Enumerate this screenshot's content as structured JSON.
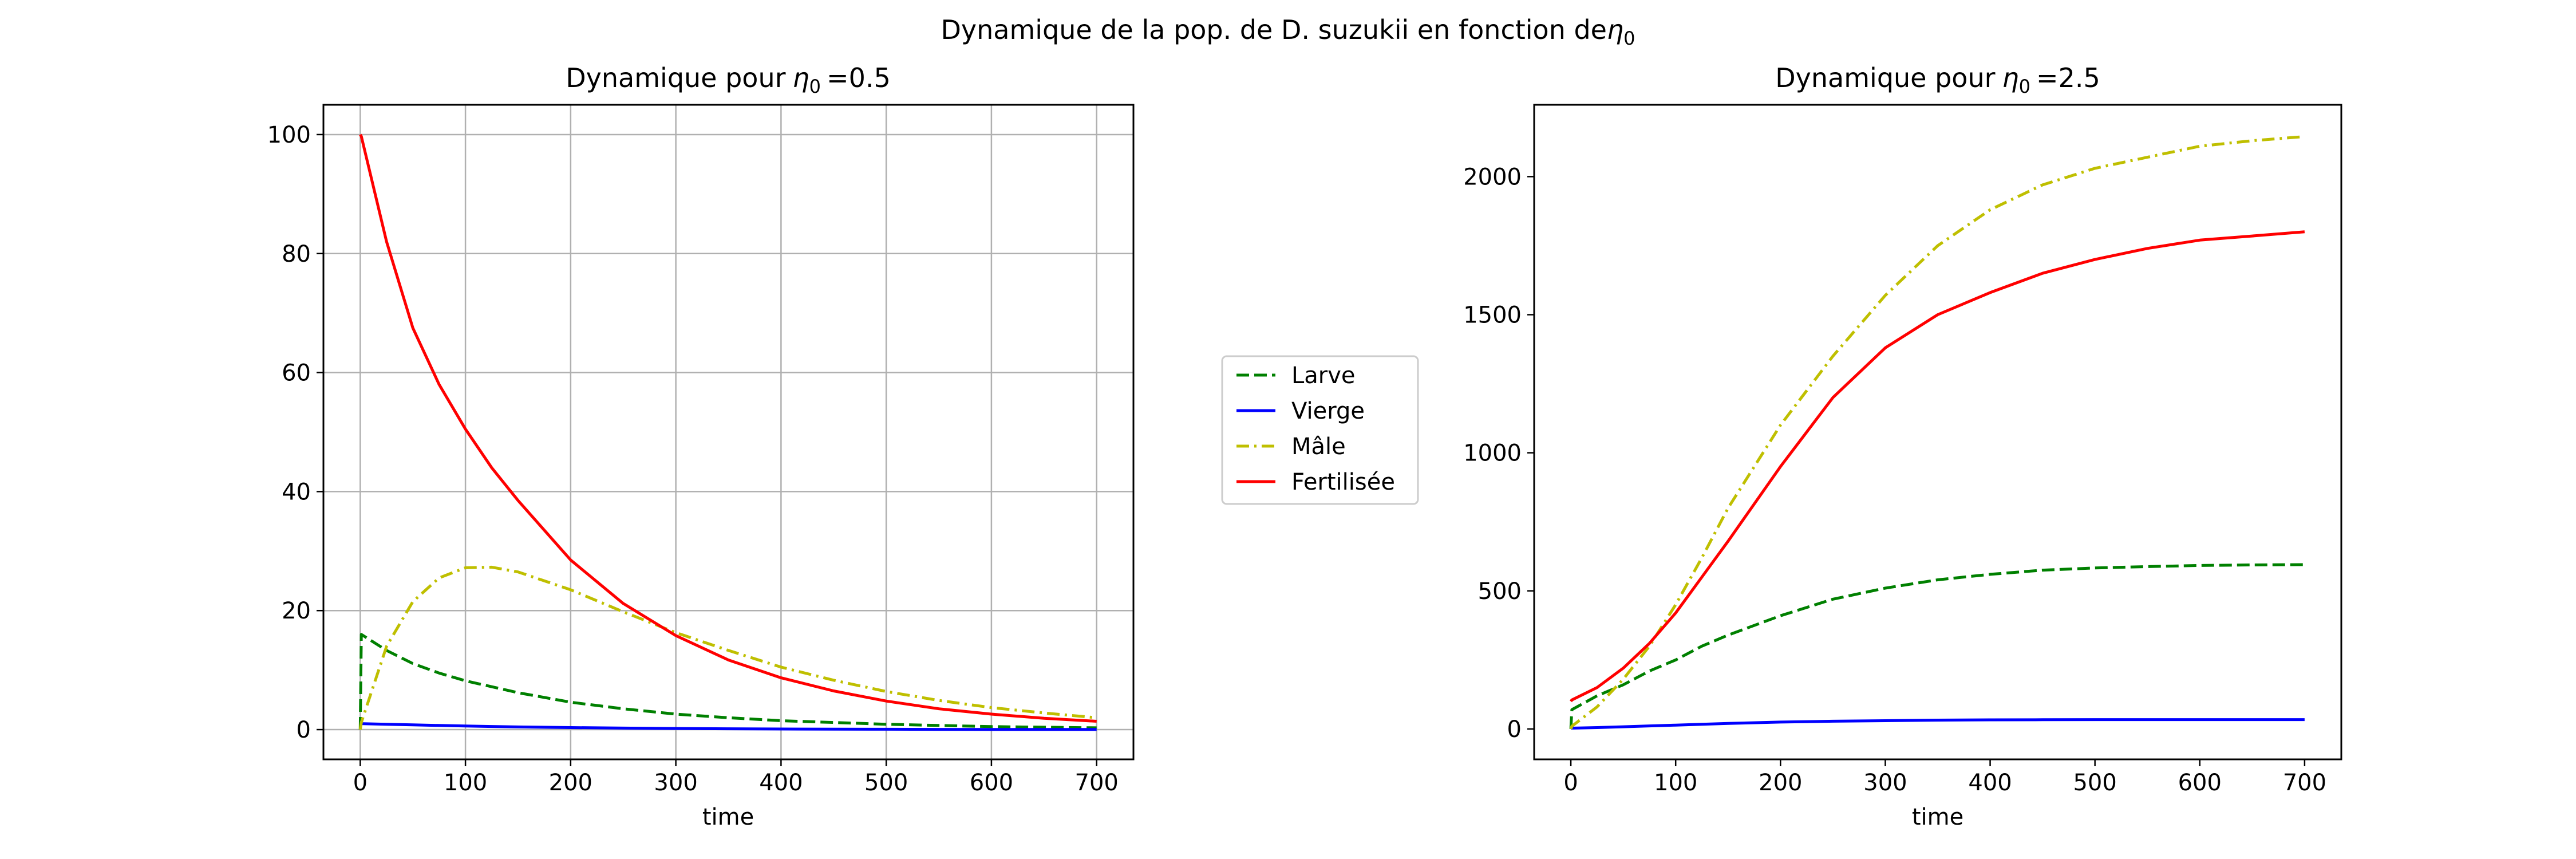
{
  "figure": {
    "suptitle_text": "Dynamique de la pop. de D. suzukii en fonction de",
    "suptitle_symbol": "η",
    "suptitle_sub": "0"
  },
  "legend": {
    "entries": [
      "Larve",
      "Vierge",
      "Mâle",
      "Fertilisée"
    ],
    "colors": [
      "#008000",
      "#0000ff",
      "#bfbf00",
      "#ff0000"
    ],
    "styles": [
      "dashed",
      "solid",
      "dashdot",
      "solid"
    ]
  },
  "chart_data": [
    {
      "type": "line",
      "title_text": "Dynamique pour",
      "title_symbol": "η",
      "title_sub": "0",
      "title_value": "=0.5",
      "xlabel": "time",
      "ylabel": "",
      "xlim": [
        -35,
        735
      ],
      "ylim": [
        -5,
        105
      ],
      "xticks": [
        0,
        100,
        200,
        300,
        400,
        500,
        600,
        700
      ],
      "yticks": [
        0,
        20,
        40,
        60,
        80,
        100
      ],
      "grid": true,
      "x": [
        0,
        1,
        25,
        50,
        75,
        100,
        125,
        150,
        200,
        250,
        300,
        350,
        400,
        450,
        500,
        550,
        600,
        650,
        700
      ],
      "series": [
        {
          "name": "Larve",
          "color": "#008000",
          "style": "dashed",
          "values": [
            0,
            16,
            13.3,
            11.1,
            9.5,
            8.2,
            7.2,
            6.2,
            4.6,
            3.5,
            2.6,
            2.0,
            1.5,
            1.2,
            0.9,
            0.7,
            0.5,
            0.4,
            0.3
          ]
        },
        {
          "name": "Vierge",
          "color": "#0000ff",
          "style": "solid",
          "values": [
            1.0,
            1.0,
            0.9,
            0.8,
            0.7,
            0.6,
            0.52,
            0.45,
            0.34,
            0.25,
            0.19,
            0.14,
            0.1,
            0.08,
            0.06,
            0.04,
            0.03,
            0.02,
            0.02
          ]
        },
        {
          "name": "Mâle",
          "color": "#bfbf00",
          "style": "dashdot",
          "values": [
            0,
            1.2,
            14,
            21.5,
            25.5,
            27.2,
            27.3,
            26.5,
            23.5,
            19.8,
            16.3,
            13.3,
            10.5,
            8.3,
            6.4,
            4.9,
            3.7,
            2.8,
            2.0
          ]
        },
        {
          "name": "Fertilisée",
          "color": "#ff0000",
          "style": "solid",
          "values": [
            100,
            99.7,
            82,
            67.5,
            58,
            50.5,
            44,
            38.5,
            28.5,
            21.2,
            15.8,
            11.7,
            8.7,
            6.5,
            4.8,
            3.5,
            2.6,
            1.9,
            1.4
          ]
        }
      ]
    },
    {
      "type": "line",
      "title_text": "Dynamique pour",
      "title_symbol": "η",
      "title_sub": "0",
      "title_value": "=2.5",
      "xlabel": "time",
      "ylabel": "",
      "xlim": [
        -35,
        735
      ],
      "ylim": [
        -110,
        2260
      ],
      "xticks": [
        0,
        100,
        200,
        300,
        400,
        500,
        600,
        700
      ],
      "yticks": [
        0,
        500,
        1000,
        1500,
        2000
      ],
      "grid": false,
      "x": [
        0,
        1,
        25,
        50,
        75,
        100,
        125,
        150,
        200,
        250,
        300,
        350,
        400,
        450,
        500,
        550,
        600,
        650,
        700
      ],
      "series": [
        {
          "name": "Larve",
          "color": "#008000",
          "style": "dashed",
          "values": [
            0,
            70,
            120,
            160,
            210,
            250,
            300,
            340,
            410,
            470,
            510,
            540,
            560,
            575,
            583,
            588,
            592,
            594,
            595
          ]
        },
        {
          "name": "Vierge",
          "color": "#0000ff",
          "style": "solid",
          "values": [
            2,
            3,
            5,
            8,
            11,
            14,
            17,
            20,
            25,
            28,
            30,
            32,
            33,
            33.5,
            34,
            34,
            34,
            34,
            34
          ]
        },
        {
          "name": "Mâle",
          "color": "#bfbf00",
          "style": "dashdot",
          "values": [
            0,
            10,
            80,
            180,
            300,
            450,
            620,
            800,
            1100,
            1350,
            1570,
            1750,
            1880,
            1970,
            2030,
            2070,
            2110,
            2130,
            2145
          ]
        },
        {
          "name": "Fertilisée",
          "color": "#ff0000",
          "style": "solid",
          "values": [
            100,
            105,
            150,
            220,
            310,
            420,
            550,
            680,
            950,
            1200,
            1380,
            1500,
            1580,
            1650,
            1700,
            1740,
            1770,
            1785,
            1800
          ]
        }
      ]
    }
  ]
}
